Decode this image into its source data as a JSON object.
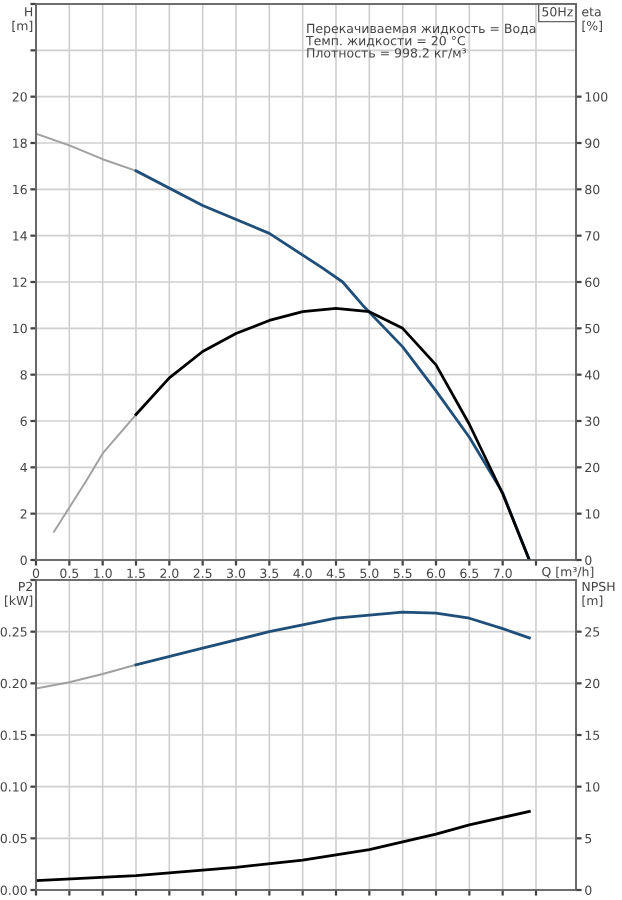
{
  "chart_data": [
    {
      "type": "line",
      "title": "50Hz",
      "xlabel": "Q [m³/h]",
      "ylabel": "H\n[m]",
      "y2label": "eta\n[%]",
      "annotations": [
        "Перекачиваемая жидкость = Вода",
        "Темп. жидкости = 20 °C",
        "Плотность = 998.2 кг/м³"
      ],
      "xlim": [
        0,
        8.1
      ],
      "xticks": [
        0,
        0.5,
        {
          "value": 1,
          "label": "1.0"
        },
        1.5,
        {
          "value": 2,
          "label": "2.0"
        },
        2.5,
        {
          "value": 3,
          "label": "3.0"
        },
        3.5,
        {
          "value": 4,
          "label": "4.0"
        },
        4.5,
        {
          "value": 5,
          "label": "5.0"
        },
        5.5,
        {
          "value": 6,
          "label": "6.0"
        },
        6.5,
        {
          "value": 7,
          "label": "7.0"
        },
        {
          "value": 7.5,
          "label": null
        }
      ],
      "ylim": [
        0,
        24
      ],
      "yticks": [
        0,
        2,
        4,
        6,
        8,
        10,
        12,
        14,
        16,
        18,
        20,
        {
          "value": 22,
          "label": null
        },
        {
          "value": 24,
          "label": null
        }
      ],
      "y2lim": [
        0,
        120
      ],
      "y2ticks": [
        0,
        10,
        20,
        30,
        40,
        50,
        60,
        70,
        80,
        90,
        100
      ],
      "grid": true,
      "legend": false,
      "series": [
        {
          "color": "#a0a0a0",
          "x": [
            0,
            0.5,
            1.0,
            1.5
          ],
          "values": [
            18.4,
            17.9,
            17.3,
            16.8
          ]
        },
        {
          "color": "#1f4e79",
          "x": [
            1.5,
            2.5,
            3.5,
            4.3,
            4.6,
            4.9,
            5.5,
            6.0,
            6.5,
            7.0,
            7.4
          ],
          "values": [
            16.8,
            15.3,
            14.1,
            12.6,
            12.0,
            11.0,
            9.2,
            7.3,
            5.3,
            2.9,
            0
          ]
        },
        {
          "color": "#a0a0a0",
          "axis": "y2",
          "x": [
            0.27,
            0.75,
            1.0,
            1.5
          ],
          "values": [
            6.1,
            17,
            23,
            31.4
          ]
        },
        {
          "color": "#000000",
          "axis": "y2",
          "x": [
            1.5,
            2.0,
            2.5,
            3.0,
            3.5,
            4.0,
            4.5,
            5.0,
            5.5,
            6.0,
            6.5,
            7.0,
            7.4
          ],
          "values": [
            31.4,
            39.3,
            45,
            48.9,
            51.7,
            53.6,
            54.3,
            53.6,
            50,
            42.1,
            29.3,
            14.3,
            0
          ]
        }
      ]
    },
    {
      "type": "line",
      "ylabel": "P2\n[kW]",
      "y2label": "NPSH\n[m]",
      "tick_labels": "y",
      "xlim": [
        0,
        8.1
      ],
      "xticks": [
        0,
        0.5,
        1,
        1.5,
        2,
        2.5,
        3,
        3.5,
        4,
        4.5,
        5,
        5.5,
        6,
        6.5,
        7,
        7.5
      ],
      "ylim": [
        0,
        0.3
      ],
      "yticks": [
        {
          "value": 0,
          "label": "0.00"
        },
        0.05,
        {
          "value": 0.1,
          "label": "0.10"
        },
        0.15,
        {
          "value": 0.2,
          "label": "0.20"
        },
        0.25,
        {
          "value": 0.3,
          "label": null
        }
      ],
      "y2lim": [
        0,
        30
      ],
      "y2ticks": [
        0,
        5,
        10,
        15,
        20,
        25
      ],
      "grid": true,
      "legend": false,
      "series": [
        {
          "color": "#a0a0a0",
          "x": [
            0,
            0.5,
            1.0,
            1.5
          ],
          "values": [
            0.195,
            0.201,
            0.209,
            0.218
          ]
        },
        {
          "color": "#1f4e79",
          "x": [
            1.5,
            2.5,
            3.5,
            4.5,
            5.5,
            6.0,
            6.5,
            7.0,
            7.4
          ],
          "values": [
            0.218,
            0.234,
            0.25,
            0.263,
            0.269,
            0.268,
            0.263,
            0.253,
            0.244
          ]
        },
        {
          "color": "#000000",
          "axis": "y2",
          "x": [
            0,
            1.5,
            3.0,
            4.0,
            5.0,
            6.0,
            6.5,
            7.4
          ],
          "values": [
            0.9,
            1.4,
            2.2,
            2.9,
            3.9,
            5.4,
            6.3,
            7.6
          ]
        }
      ]
    }
  ]
}
